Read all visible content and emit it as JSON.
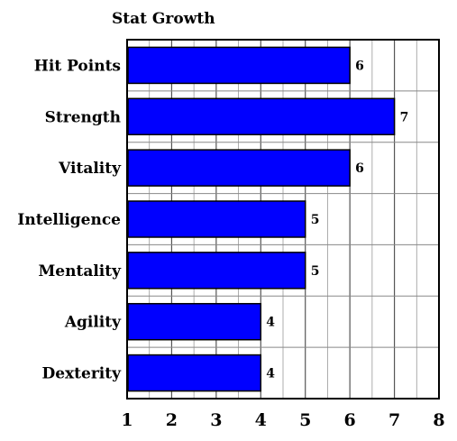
{
  "chart_data": {
    "type": "bar",
    "orientation": "horizontal",
    "title": "Stat Growth",
    "categories": [
      "Hit Points",
      "Strength",
      "Vitality",
      "Intelligence",
      "Mentality",
      "Agility",
      "Dexterity"
    ],
    "values": [
      6,
      7,
      6,
      5,
      5,
      4,
      4
    ],
    "data_labels": [
      "6",
      "7",
      "6",
      "5",
      "5",
      "4",
      "4"
    ],
    "xlim": [
      1,
      8
    ],
    "xticks": [
      "1",
      "2",
      "3",
      "4",
      "5",
      "6",
      "7",
      "8"
    ],
    "xlabel": "",
    "ylabel": "",
    "grid": true,
    "minor_grid_step": 0.5,
    "legend": "none",
    "colors": {
      "bar_fill": "#0000ff",
      "bar_edge": "#000000",
      "grid": "#999999",
      "background": "#ffffff"
    }
  }
}
